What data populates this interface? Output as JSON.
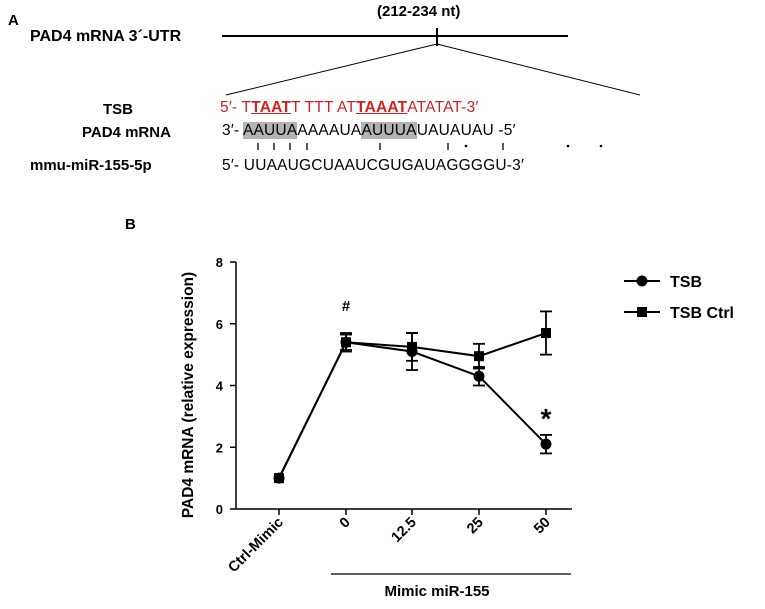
{
  "panel_a": {
    "letter": "A",
    "region_label": "(212-234 nt)",
    "utr_label": "PAD4 mRNA 3´-UTR",
    "rows": [
      {
        "label": "TSB",
        "prefix": "5′- T",
        "seg1": "TAAT",
        "mid": "T TTT AT",
        "seg2": "TAAAT",
        "suffix": "ATATAT-3′"
      },
      {
        "label": "PAD4 mRNA",
        "prefix": "3′- ",
        "seg1": "AAUUA",
        "mid": "AAAAUA",
        "seg2": "AUUUA",
        "suffix": "UAUAUAU -5′"
      },
      {
        "label": "mmu-miR-155-5p",
        "text": "5′- UUAAUGCUAAUCGUGAUAGGGGU-3′"
      }
    ]
  },
  "panel_b": {
    "letter": "B",
    "annotation_hash": "#",
    "annotation_star": "*",
    "bracket_label": "Mimic miR-155"
  },
  "chart_data": {
    "type": "line",
    "ylabel": "PAD4 mRNA (relative expression)",
    "xlabel": "",
    "categories": [
      "Ctrl-Mimic",
      "0",
      "12.5",
      "25",
      "50"
    ],
    "y_ticks": [
      "0",
      "2",
      "4",
      "6",
      "8"
    ],
    "ylim": [
      0,
      8
    ],
    "legend_position": "right",
    "series": [
      {
        "name": "TSB",
        "marker": "circle",
        "color": "#000000",
        "values": [
          1.0,
          5.4,
          5.1,
          4.3,
          2.1
        ],
        "errors": [
          0,
          0.25,
          0.6,
          0.3,
          0.3
        ]
      },
      {
        "name": "TSB Ctrl",
        "marker": "square",
        "color": "#000000",
        "values": [
          1.0,
          5.4,
          5.25,
          4.95,
          5.7
        ],
        "errors": [
          0,
          0.3,
          0.45,
          0.4,
          0.7
        ]
      }
    ]
  }
}
